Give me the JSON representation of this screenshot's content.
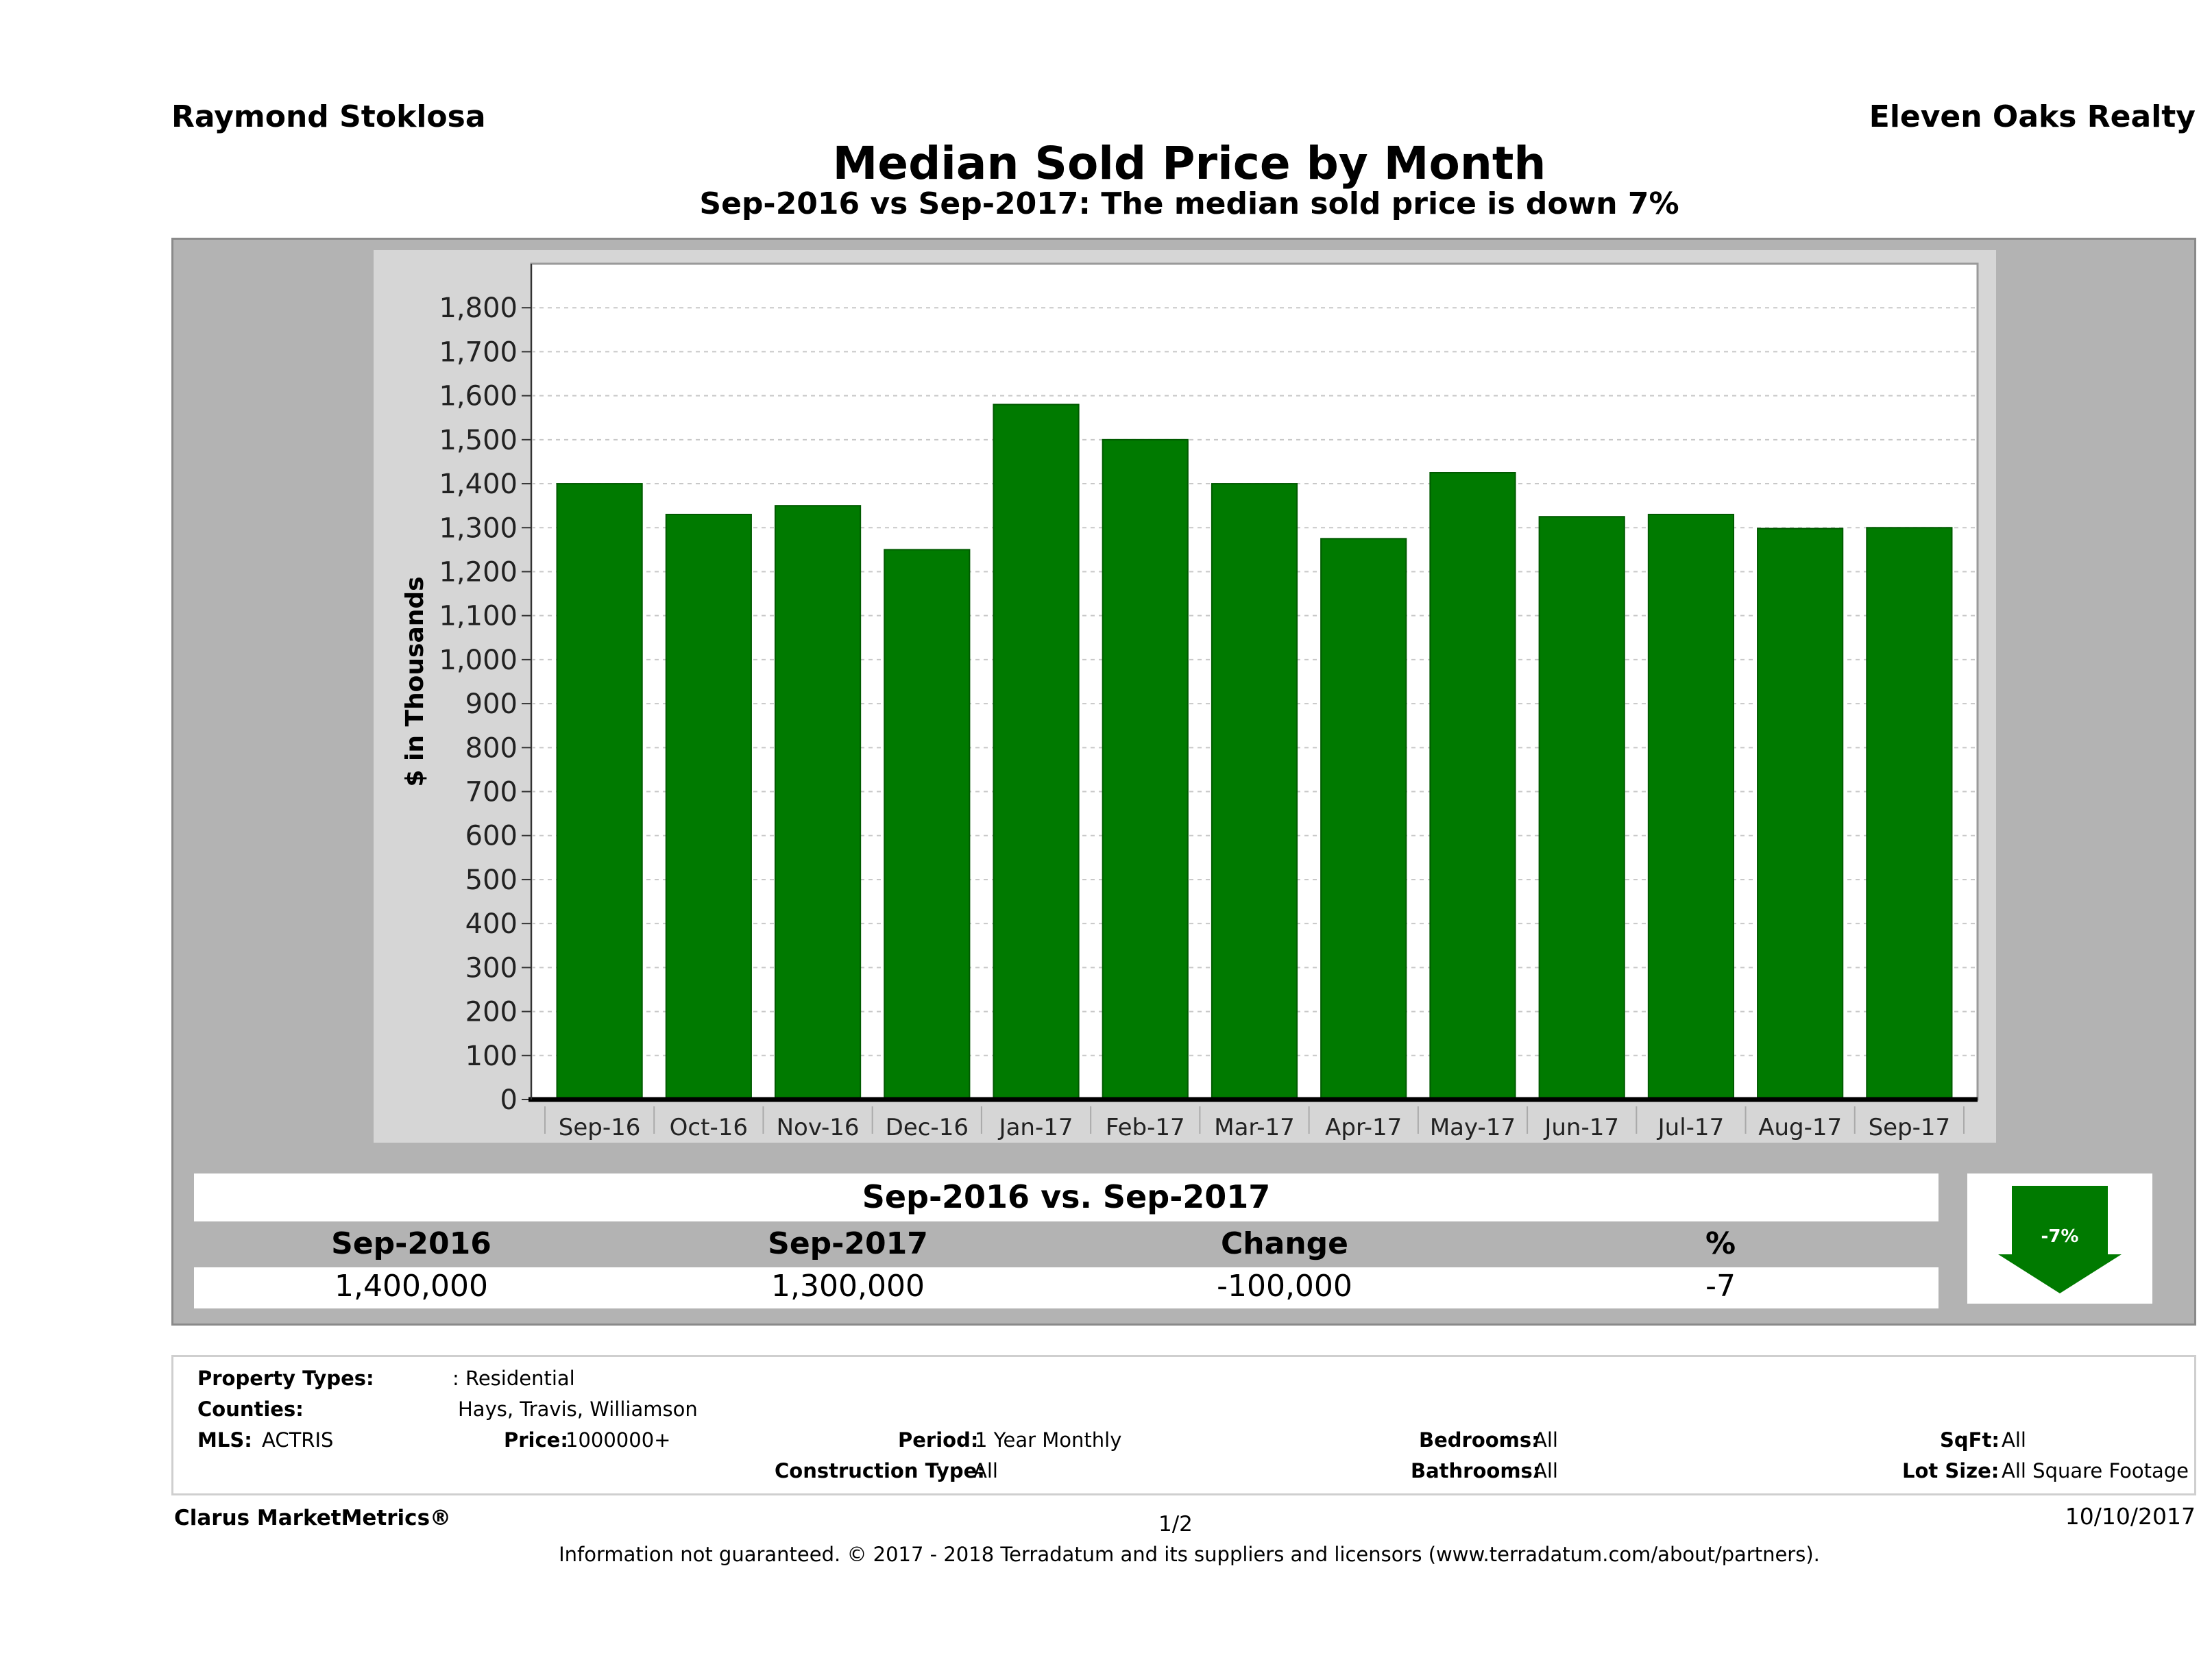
{
  "header": {
    "agent": "Raymond Stoklosa",
    "brokerage": "Eleven Oaks Realty",
    "title": "Median Sold Price by Month",
    "subtitle": "Sep-2016 vs Sep-2017: The median sold price is down 7%"
  },
  "chart_data": {
    "type": "bar",
    "ylabel": "$ in Thousands",
    "ylim": [
      0,
      1900
    ],
    "yticks": [
      0,
      100,
      200,
      300,
      400,
      500,
      600,
      700,
      800,
      900,
      1000,
      1100,
      1200,
      1300,
      1400,
      1500,
      1600,
      1700,
      1800
    ],
    "ytick_labels": [
      "0",
      "100",
      "200",
      "300",
      "400",
      "500",
      "600",
      "700",
      "800",
      "900",
      "1,000",
      "1,100",
      "1,200",
      "1,300",
      "1,400",
      "1,500",
      "1,600",
      "1,700",
      "1,800"
    ],
    "categories": [
      "Sep-16",
      "Oct-16",
      "Nov-16",
      "Dec-16",
      "Jan-17",
      "Feb-17",
      "Mar-17",
      "Apr-17",
      "May-17",
      "Jun-17",
      "Jul-17",
      "Aug-17",
      "Sep-17"
    ],
    "values": [
      1400,
      1330,
      1350,
      1250,
      1580,
      1500,
      1400,
      1275,
      1425,
      1325,
      1330,
      1298,
      1300
    ],
    "bar_color": "#007a00",
    "grid": true
  },
  "summary": {
    "title": "Sep-2016 vs. Sep-2017",
    "headers": [
      "Sep-2016",
      "Sep-2017",
      "Change",
      "%"
    ],
    "values": [
      "1,400,000",
      "1,300,000",
      "-100,000",
      "-7"
    ],
    "badge_label": "-7%",
    "badge_direction": "down",
    "badge_color": "#007a00"
  },
  "filters": {
    "property_types_label": "Property Types:",
    "property_types_value": ": Residential",
    "counties_label": "Counties:",
    "counties_value": "Hays, Travis, Williamson",
    "mls_label": "MLS:",
    "mls_value": "ACTRIS",
    "price_label": "Price:",
    "price_value": "1000000+",
    "period_label": "Period:",
    "period_value": "1 Year Monthly",
    "construction_label": "Construction Type:",
    "construction_value": "All",
    "bedrooms_label": "Bedrooms:",
    "bedrooms_value": "All",
    "bathrooms_label": "Bathrooms:",
    "bathrooms_value": "All",
    "sqft_label": "SqFt:",
    "sqft_value": "All",
    "lot_label": "Lot Size:",
    "lot_value": "All Square Footage"
  },
  "footer": {
    "brand": "Clarus MarketMetrics®",
    "page": "1/2",
    "date": "10/10/2017",
    "disclaimer": "Information not guaranteed. © 2017 - 2018 Terradatum and its suppliers and licensors (www.terradatum.com/about/partners)."
  }
}
